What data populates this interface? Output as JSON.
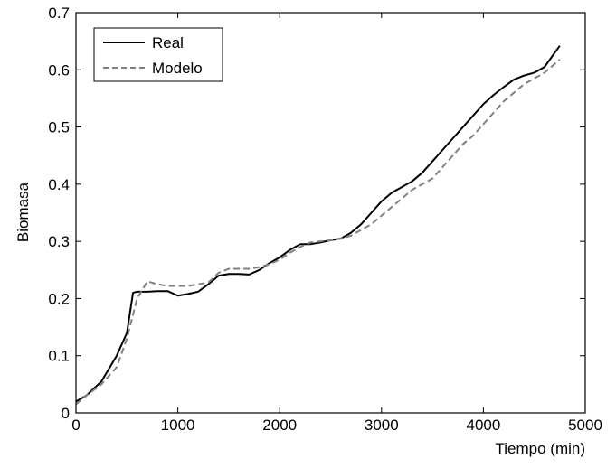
{
  "chart_data": {
    "type": "line",
    "title": "",
    "xlabel": "Tiempo (min)",
    "ylabel": "Biomasa",
    "xlim": [
      0,
      5000
    ],
    "ylim": [
      0,
      0.7
    ],
    "xticks": [
      0,
      1000,
      2000,
      3000,
      4000,
      5000
    ],
    "yticks": [
      0,
      0.1,
      0.2,
      0.3,
      0.4,
      0.5,
      0.6,
      0.7
    ],
    "xtick_labels": [
      "0",
      "1000",
      "2000",
      "3000",
      "4000",
      "5000"
    ],
    "ytick_labels": [
      "0",
      "0.1",
      "0.2",
      "0.3",
      "0.4",
      "0.5",
      "0.6",
      "0.7"
    ],
    "grid": false,
    "legend_position": "top-left",
    "series": [
      {
        "name": "Real",
        "style": "solid",
        "color": "#000000",
        "x": [
          0,
          100,
          250,
          400,
          500,
          560,
          600,
          700,
          800,
          900,
          1000,
          1100,
          1200,
          1300,
          1400,
          1500,
          1600,
          1700,
          1800,
          1900,
          2000,
          2100,
          2200,
          2300,
          2400,
          2500,
          2600,
          2700,
          2800,
          2900,
          3000,
          3100,
          3200,
          3300,
          3400,
          3500,
          3600,
          3700,
          3800,
          3900,
          4000,
          4100,
          4200,
          4300,
          4400,
          4500,
          4600,
          4750
        ],
        "y": [
          0.02,
          0.03,
          0.055,
          0.1,
          0.14,
          0.21,
          0.212,
          0.212,
          0.213,
          0.213,
          0.205,
          0.208,
          0.212,
          0.225,
          0.24,
          0.243,
          0.243,
          0.242,
          0.25,
          0.262,
          0.272,
          0.285,
          0.295,
          0.295,
          0.298,
          0.302,
          0.305,
          0.315,
          0.33,
          0.35,
          0.37,
          0.385,
          0.395,
          0.405,
          0.42,
          0.44,
          0.46,
          0.48,
          0.5,
          0.52,
          0.54,
          0.556,
          0.57,
          0.583,
          0.59,
          0.595,
          0.605,
          0.642
        ]
      },
      {
        "name": "Modelo",
        "style": "dashed",
        "color": "#808080",
        "x": [
          0,
          100,
          250,
          400,
          500,
          600,
          700,
          800,
          900,
          1000,
          1100,
          1200,
          1300,
          1400,
          1500,
          1600,
          1700,
          1800,
          1900,
          2000,
          2100,
          2200,
          2300,
          2400,
          2500,
          2600,
          2700,
          2800,
          2900,
          3000,
          3100,
          3200,
          3300,
          3400,
          3500,
          3600,
          3700,
          3800,
          3900,
          4000,
          4100,
          4200,
          4300,
          4400,
          4500,
          4600,
          4750
        ],
        "y": [
          0.015,
          0.03,
          0.05,
          0.08,
          0.13,
          0.2,
          0.23,
          0.225,
          0.222,
          0.222,
          0.222,
          0.225,
          0.228,
          0.245,
          0.252,
          0.252,
          0.252,
          0.255,
          0.26,
          0.268,
          0.28,
          0.29,
          0.298,
          0.3,
          0.302,
          0.305,
          0.31,
          0.32,
          0.33,
          0.345,
          0.36,
          0.375,
          0.39,
          0.4,
          0.41,
          0.43,
          0.45,
          0.47,
          0.485,
          0.505,
          0.525,
          0.545,
          0.56,
          0.575,
          0.585,
          0.595,
          0.618
        ]
      }
    ]
  }
}
